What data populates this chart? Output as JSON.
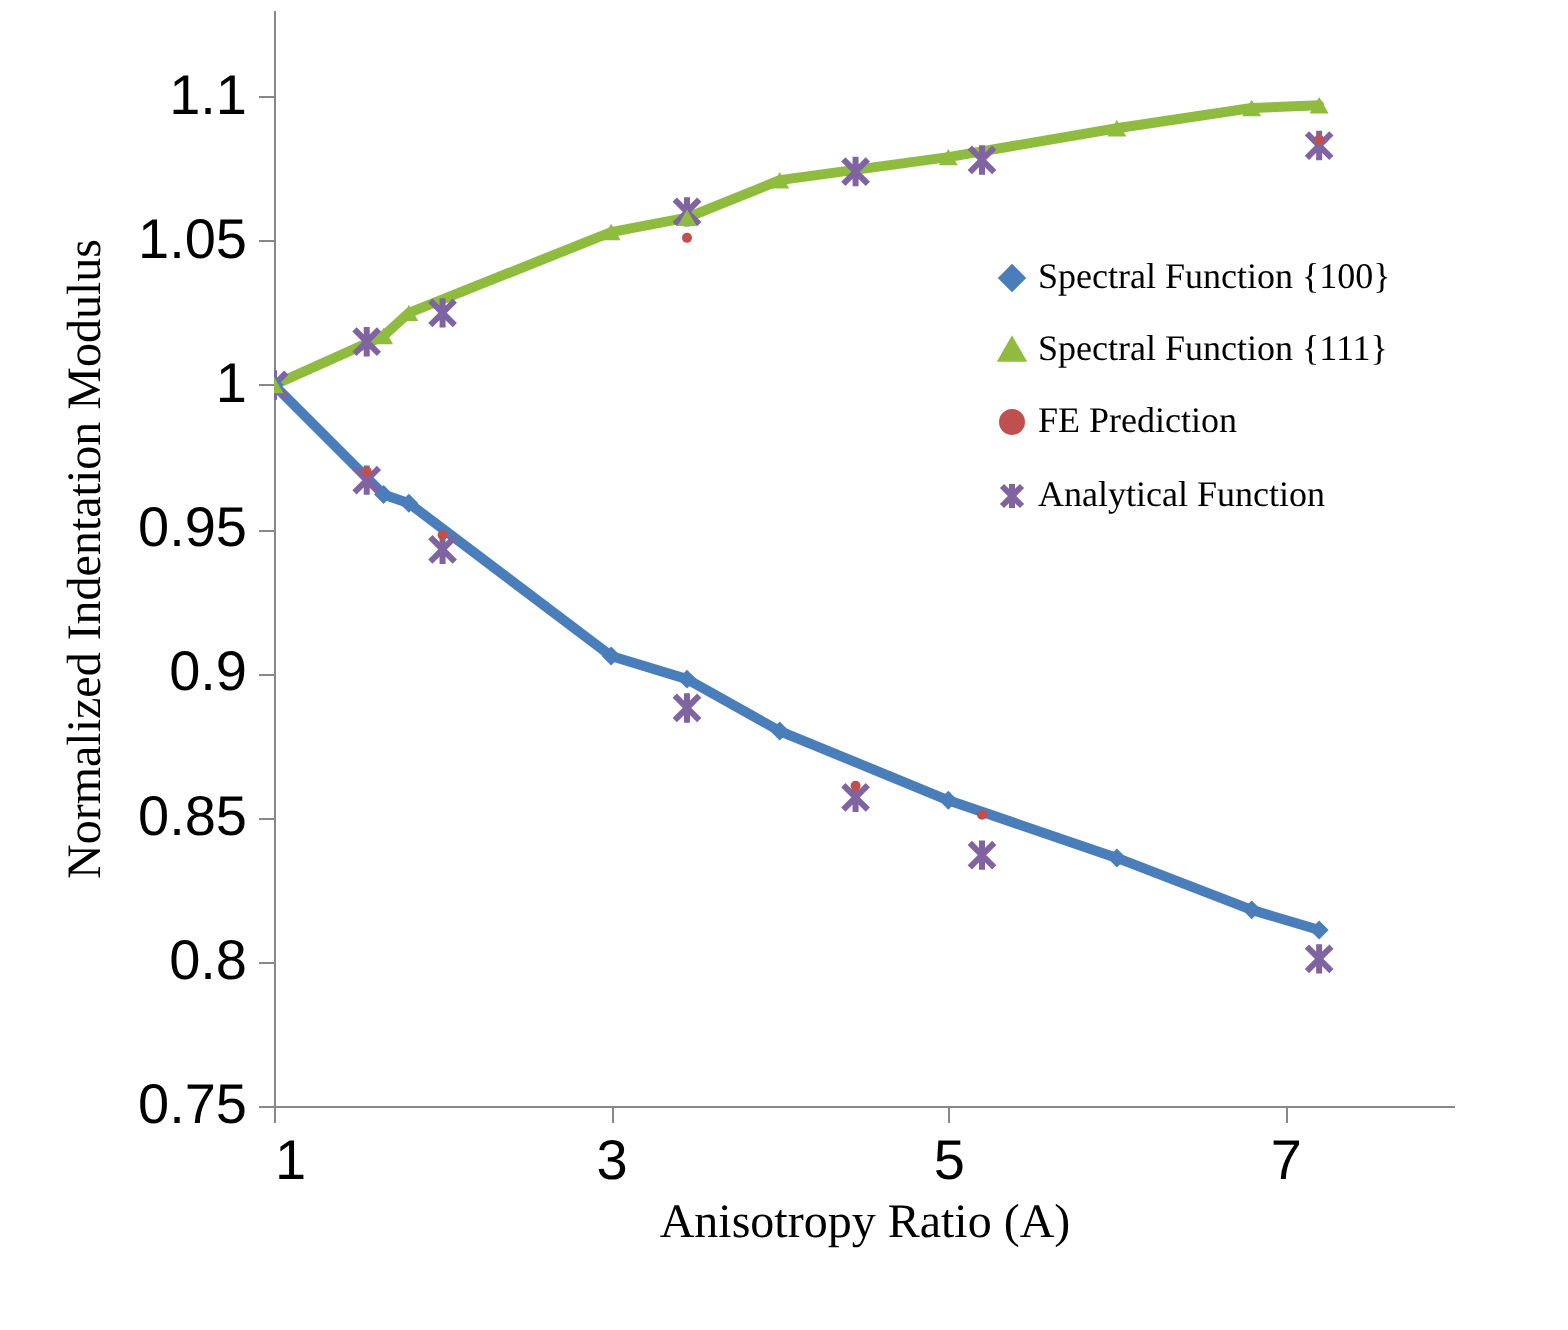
{
  "chart_data": {
    "type": "line",
    "xlabel": "Anisotropy Ratio (A)",
    "ylabel": "Normalized Indentation Modulus",
    "xlim": [
      1,
      8
    ],
    "xticks": [
      1,
      3,
      5,
      7
    ],
    "ylim": [
      0.75,
      1.13
    ],
    "yticks": [
      0.75,
      0.8,
      0.85,
      0.9,
      0.95,
      1,
      1.05,
      1.1
    ],
    "grid": false,
    "legend": "right",
    "line_style": "solid",
    "series": [
      {
        "name": "Spectral Function {100}",
        "marker": "diamond",
        "color": "#4a7ebb",
        "x": [
          1,
          1.65,
          1.8,
          3,
          3.45,
          4,
          5,
          6,
          6.8,
          7.2
        ],
        "values": [
          1.0,
          0.962,
          0.959,
          0.906,
          0.898,
          0.88,
          0.856,
          0.836,
          0.818,
          0.811
        ]
      },
      {
        "name": "Spectral Function {111}",
        "marker": "triangle",
        "color": "#8fbc3f",
        "x": [
          1,
          1.65,
          1.8,
          3,
          3.45,
          4,
          5,
          6,
          6.8,
          7.2
        ],
        "values": [
          1.0,
          1.017,
          1.025,
          1.053,
          1.058,
          1.071,
          1.079,
          1.089,
          1.096,
          1.097
        ]
      },
      {
        "name": "FE Prediction",
        "type": "scatter",
        "marker": "circle",
        "color": "#c0504d",
        "x": [
          1.55,
          2,
          3.45,
          4.45,
          5.2,
          7.2
        ],
        "values": [
          0.97,
          0.948,
          1.051,
          0.861,
          0.851,
          1.085
        ]
      },
      {
        "name": "Analytical Function",
        "type": "scatter",
        "marker": "cross",
        "color": "#8064a2",
        "x": [
          1,
          1.55,
          2,
          3.45,
          4.45,
          5.2,
          7.2,
          1.55,
          2,
          3.45,
          4.45,
          5.2,
          7.2
        ],
        "values": [
          1.0,
          1.015,
          1.025,
          1.06,
          1.074,
          1.078,
          1.083,
          0.967,
          0.943,
          0.888,
          0.857,
          0.837,
          0.801
        ]
      }
    ]
  }
}
